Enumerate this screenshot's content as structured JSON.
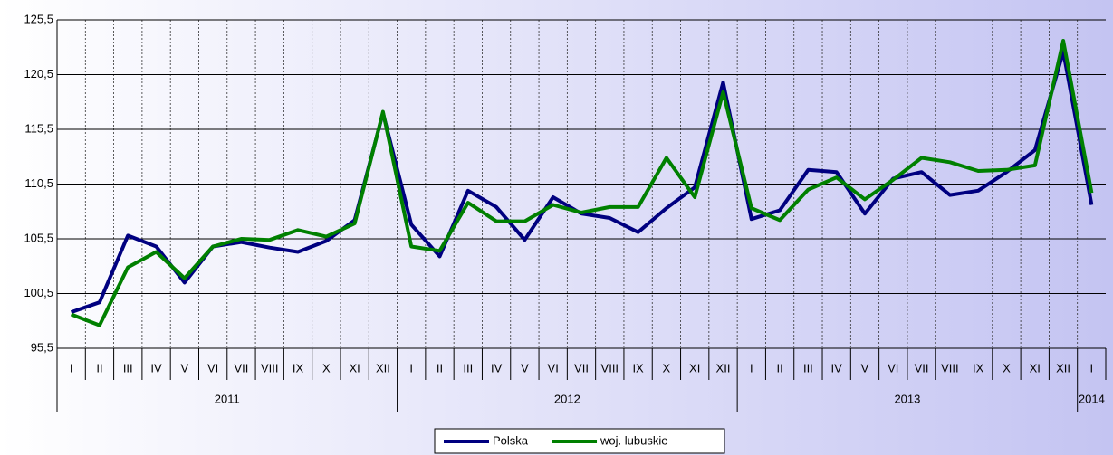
{
  "chart_data": {
    "type": "line",
    "categories": [
      "I",
      "II",
      "III",
      "IV",
      "V",
      "VI",
      "VII",
      "VIII",
      "IX",
      "X",
      "XI",
      "XII",
      "I",
      "II",
      "III",
      "IV",
      "V",
      "VI",
      "VII",
      "VIII",
      "IX",
      "X",
      "XI",
      "XII",
      "I",
      "II",
      "III",
      "IV",
      "V",
      "VI",
      "VII",
      "VIII",
      "IX",
      "X",
      "XI",
      "XII",
      "I"
    ],
    "groups": [
      "2011",
      "2012",
      "2013",
      "2014"
    ],
    "series": [
      {
        "name": "Polska",
        "color": "#000080",
        "values": [
          98.8,
          99.7,
          105.8,
          104.8,
          101.5,
          104.8,
          105.2,
          104.7,
          104.3,
          105.3,
          107.2,
          117.0,
          106.8,
          103.9,
          109.9,
          108.4,
          105.4,
          109.3,
          107.8,
          107.4,
          106.1,
          108.3,
          110.2,
          119.8,
          107.3,
          108.1,
          111.8,
          111.6,
          107.8,
          111.0,
          111.6,
          109.5,
          109.9,
          111.6,
          113.6,
          122.6,
          108.6
        ]
      },
      {
        "name": "woj. lubuskie",
        "color": "#008000",
        "values": [
          98.6,
          97.6,
          102.9,
          104.3,
          101.9,
          104.8,
          105.5,
          105.4,
          106.3,
          105.7,
          106.9,
          117.1,
          104.8,
          104.4,
          108.8,
          107.1,
          107.1,
          108.6,
          107.9,
          108.4,
          108.4,
          112.9,
          109.3,
          118.9,
          108.3,
          107.2,
          110.0,
          111.1,
          109.1,
          110.9,
          112.9,
          112.5,
          111.7,
          111.8,
          112.2,
          123.6,
          109.7
        ]
      }
    ],
    "ylim": [
      95.5,
      125.5
    ],
    "yticks": [
      {
        "value": 95.5,
        "label": "95,5"
      },
      {
        "value": 100.5,
        "label": "100,5"
      },
      {
        "value": 105.5,
        "label": "105,5"
      },
      {
        "value": 110.5,
        "label": "110,5"
      },
      {
        "value": 115.5,
        "label": "115,5"
      },
      {
        "value": 120.5,
        "label": "120,5"
      },
      {
        "value": 125.5,
        "label": "125,5"
      }
    ],
    "grid": true
  }
}
